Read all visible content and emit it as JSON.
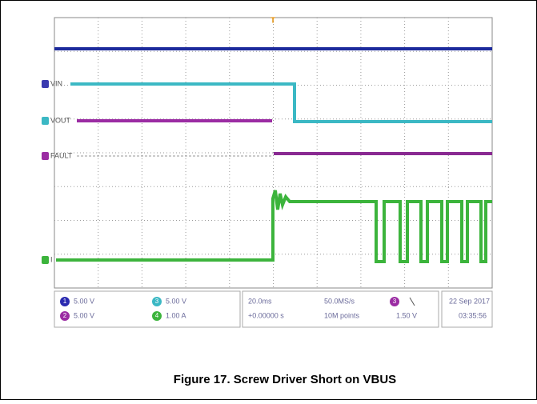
{
  "figure": {
    "caption": "Figure 17. Screw Driver Short on VBUS",
    "trace_labels": {
      "vin": "VIN",
      "vout": "VOUT",
      "fault": "FAULT",
      "current": "I"
    },
    "trigger_marker": "T",
    "channels": [
      {
        "number": "1",
        "scale": "5.00 V"
      },
      {
        "number": "2",
        "scale": "5.00 V"
      },
      {
        "number": "3",
        "scale": "5.00 V"
      },
      {
        "number": "4",
        "scale": "1.00 A"
      }
    ],
    "timebase": "20.0ms",
    "trigger_position": "+0.00000 s",
    "sample_rate": "50.0MS/s",
    "record_length": "10M points",
    "trigger_channel": "3",
    "trigger_level": "1.50 V",
    "date": "22 Sep 2017",
    "time": "03:35:56"
  }
}
